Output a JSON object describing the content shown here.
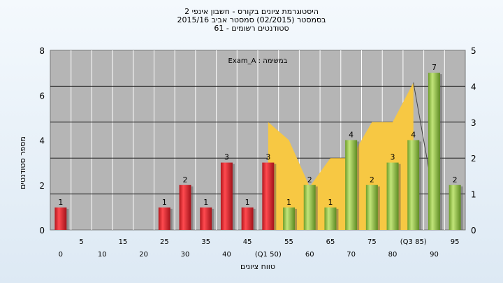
{
  "title_lines": [
    "היסטוגרמת ציונים בקורס - חשבון אינפי 2",
    "בסמסטר  (02/2015)  סמסטר אביב 2015/16",
    "סטודנטים רשומים - 61"
  ],
  "chart_data": {
    "type": "bar",
    "annotation": "Exam_A : במשימה",
    "ylabel": "מספר סטודנטים",
    "xlabel": "טווח ציונים",
    "ylim": [
      0,
      8
    ],
    "y_ticks": [
      "0",
      "2",
      "4",
      "6",
      "8"
    ],
    "y2lim": [
      0,
      5
    ],
    "y2_ticks": [
      "0",
      "1",
      "2",
      "3",
      "4",
      "5"
    ],
    "x_ticks_upper": [
      "5",
      "15",
      "25",
      "35",
      "45",
      "55",
      "65",
      "75",
      "(Q3 85)",
      "95"
    ],
    "x_ticks_lower": [
      "0",
      "10",
      "20",
      "30",
      "40",
      "(Q1 50)",
      "60",
      "70",
      "80",
      "90"
    ],
    "categories": [
      "0",
      "5",
      "10",
      "15",
      "20",
      "25",
      "30",
      "35",
      "40",
      "45",
      "50",
      "55",
      "60",
      "65",
      "70",
      "75",
      "80",
      "85",
      "90",
      "95"
    ],
    "values": [
      1,
      0,
      0,
      0,
      0,
      1,
      2,
      1,
      3,
      1,
      3,
      1,
      2,
      1,
      4,
      2,
      3,
      4,
      7,
      2
    ],
    "bar_colors": [
      "red",
      "red",
      "red",
      "red",
      "red",
      "red",
      "red",
      "red",
      "red",
      "red",
      "red",
      "green",
      "green",
      "green",
      "green",
      "green",
      "green",
      "green",
      "green",
      "green"
    ],
    "area_series": {
      "x": [
        50,
        55,
        60,
        65,
        70,
        75,
        80,
        85
      ],
      "values": [
        3,
        2.5,
        1.2,
        2,
        2,
        3,
        3,
        4.1
      ]
    },
    "colors": {
      "red_bar": "#e0262d",
      "green_bar": "#8cc43d",
      "area": "#f7c843",
      "plot_bg": "#b5b5b5"
    }
  }
}
